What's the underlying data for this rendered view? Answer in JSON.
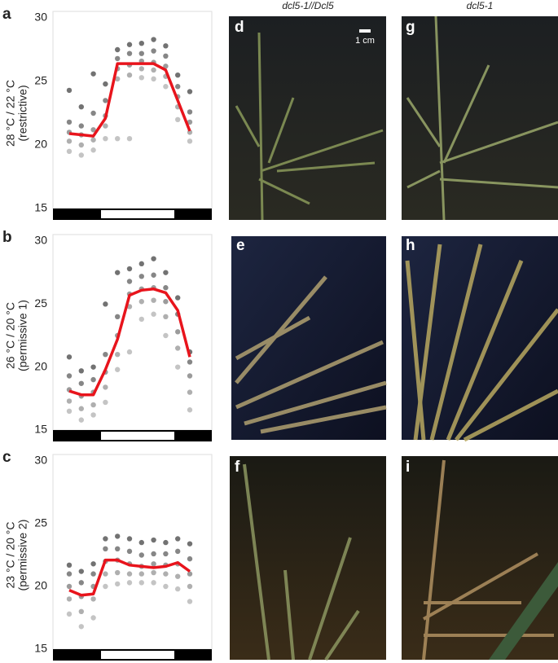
{
  "chart_data": [
    {
      "type": "line",
      "panel": "a",
      "ylabel": [
        "28 °C / 22 °C",
        "(restrictive)"
      ],
      "categories": [
        null,
        null,
        null,
        null,
        null,
        null,
        null,
        null,
        null,
        null,
        null
      ],
      "series": [
        {
          "color": "#e8141c",
          "values": [
            20.9,
            20.8,
            20.7,
            22.1,
            26.4,
            26.4,
            26.4,
            26.4,
            25.9,
            23.5,
            21.1
          ]
        }
      ],
      "points": {
        "color": "#555555",
        "values": [
          [
            19.5,
            20.3,
            21,
            21.8,
            24.3
          ],
          [
            19.2,
            20,
            20.8,
            21.5,
            23
          ],
          [
            19.6,
            20.4,
            21.2,
            22.5,
            25.6
          ],
          [
            20.5,
            21.5,
            22.3,
            23.5,
            24.8
          ],
          [
            20.5,
            25.2,
            26,
            26.8,
            27.5
          ],
          [
            20.5,
            25.5,
            26.3,
            27.2,
            27.9
          ],
          [
            25.3,
            26,
            26.6,
            27.2,
            28
          ],
          [
            25.2,
            25.9,
            26.5,
            27.4,
            28.3
          ],
          [
            24.6,
            25.4,
            26.2,
            27,
            27.8
          ],
          [
            22,
            23,
            23.8,
            24.6,
            25.5
          ],
          [
            20.3,
            21,
            21.8,
            22.6,
            24.2
          ]
        ]
      },
      "ylim": [
        15,
        30
      ],
      "yticks": [
        15,
        20,
        25,
        30
      ]
    },
    {
      "type": "line",
      "panel": "b",
      "ylabel": [
        "26 °C / 20 °C",
        "(permissive 1)"
      ],
      "categories": [
        null,
        null,
        null,
        null,
        null,
        null,
        null,
        null,
        null,
        null,
        null
      ],
      "series": [
        {
          "color": "#e8141c",
          "values": [
            18.1,
            17.8,
            17.8,
            19.8,
            22.2,
            25.7,
            26.1,
            26.2,
            25.9,
            24.5,
            20.8
          ]
        }
      ],
      "points": {
        "color": "#555555",
        "values": [
          [
            16.5,
            17.3,
            18.2,
            19.3,
            20.8
          ],
          [
            15.8,
            16.7,
            17.7,
            18.7,
            19.7
          ],
          [
            16.2,
            17,
            18,
            19,
            20
          ],
          [
            17.2,
            18.4,
            19.6,
            21,
            25
          ],
          [
            19.8,
            21,
            22.5,
            24,
            27.5
          ],
          [
            21.2,
            24.8,
            25.8,
            26.8,
            27.8
          ],
          [
            23.8,
            25.2,
            26.2,
            27.2,
            28.2
          ],
          [
            24.2,
            25.3,
            26.3,
            27.3,
            28.6
          ],
          [
            22.5,
            24,
            25.2,
            26.3,
            27.5
          ],
          [
            20,
            21.5,
            22.8,
            24.2,
            25.5
          ],
          [
            16.6,
            18,
            19.3,
            20.4,
            21.2
          ]
        ]
      },
      "ylim": [
        15,
        30
      ],
      "yticks": [
        15,
        20,
        25,
        30
      ]
    },
    {
      "type": "line",
      "panel": "c",
      "ylabel": [
        "23 °C / 20 °C",
        "(permissive 2)"
      ],
      "categories": [
        null,
        null,
        null,
        null,
        null,
        null,
        null,
        null,
        null,
        null,
        null
      ],
      "series": [
        {
          "color": "#e8141c",
          "values": [
            19.7,
            19.3,
            19.4,
            22.1,
            22.1,
            21.7,
            21.6,
            21.5,
            21.6,
            21.9,
            21.2
          ]
        }
      ],
      "points": {
        "color": "#555555",
        "values": [
          [
            17.8,
            19,
            20,
            21,
            21.7
          ],
          [
            16.8,
            18,
            19.2,
            20.3,
            21.2
          ],
          [
            17.5,
            19,
            20,
            21,
            21.8
          ],
          [
            20,
            21,
            22,
            23,
            23.8
          ],
          [
            20.2,
            21.1,
            22.1,
            23,
            24
          ],
          [
            20.3,
            21,
            21.8,
            22.8,
            23.8
          ],
          [
            20.3,
            21,
            21.6,
            22.5,
            23.5
          ],
          [
            20.3,
            21.1,
            21.8,
            22.6,
            23.7
          ],
          [
            20,
            21,
            21.7,
            22.6,
            23.5
          ],
          [
            19.8,
            20.8,
            21.8,
            22.8,
            23.8
          ],
          [
            18.8,
            20,
            21,
            22.2,
            23.4
          ]
        ]
      },
      "ylim": [
        15,
        30
      ],
      "yticks": [
        15,
        20,
        25,
        30
      ]
    }
  ],
  "photos": {
    "column_headers": [
      "dcl5-1//Dcl5",
      "dcl5-1"
    ],
    "scale_bar": "1 cm",
    "panels": [
      "d",
      "g",
      "e",
      "h",
      "f",
      "i"
    ]
  }
}
